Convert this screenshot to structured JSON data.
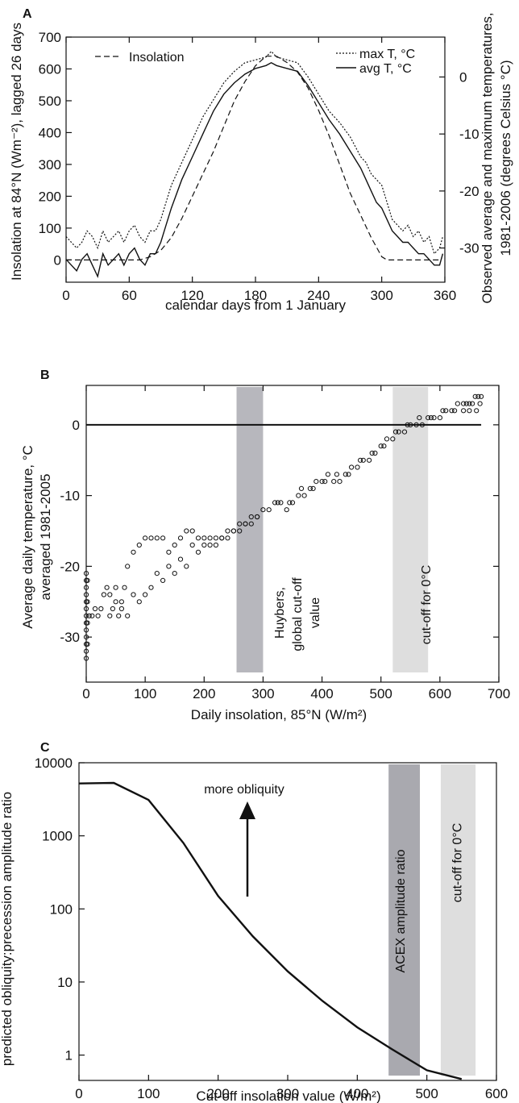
{
  "chart_data": [
    {
      "panel": "A",
      "type": "line",
      "xlabel": "calendar days from 1 January",
      "ylabel": "Insolation at 84°N (Wm⁻²), lagged 26 days",
      "ylabel_right": [
        "Observed average and maximum temperatures,",
        "1981-2006 (degrees Celsius °C)"
      ],
      "xlim": [
        0,
        360
      ],
      "ylim": [
        -70,
        700
      ],
      "ylim_right": [
        -36,
        7
      ],
      "xticks": [
        0,
        60,
        120,
        180,
        240,
        300,
        360
      ],
      "yticks": [
        0,
        100,
        200,
        300,
        400,
        500,
        600,
        700
      ],
      "yticks_right": [
        0,
        -10,
        -20,
        -30
      ],
      "legend": [
        {
          "label": "Insolation",
          "style": "dashed",
          "position": "top-left"
        },
        {
          "label": "max T, °C",
          "style": "dotted",
          "position": "top-right"
        },
        {
          "label": "avg T, °C",
          "style": "solid",
          "position": "top-right"
        }
      ],
      "series": [
        {
          "name": "Insolation",
          "axis": "left",
          "style": "dashed",
          "x": [
            0,
            70,
            80,
            90,
            100,
            110,
            120,
            130,
            140,
            150,
            160,
            170,
            180,
            190,
            200,
            210,
            220,
            230,
            240,
            250,
            260,
            270,
            280,
            290,
            300,
            305,
            320,
            340,
            355
          ],
          "y": [
            0,
            0,
            10,
            30,
            70,
            130,
            200,
            270,
            340,
            420,
            500,
            560,
            610,
            640,
            640,
            620,
            590,
            540,
            470,
            390,
            300,
            210,
            140,
            70,
            10,
            0,
            0,
            0,
            0
          ]
        },
        {
          "name": "max T, °C",
          "axis": "right",
          "style": "dotted",
          "x": [
            0,
            5,
            10,
            15,
            20,
            25,
            30,
            35,
            40,
            45,
            50,
            55,
            60,
            65,
            70,
            75,
            80,
            85,
            90,
            95,
            100,
            110,
            120,
            130,
            140,
            150,
            160,
            170,
            180,
            190,
            195,
            200,
            210,
            220,
            230,
            240,
            250,
            260,
            270,
            280,
            285,
            290,
            295,
            300,
            305,
            310,
            315,
            320,
            325,
            330,
            335,
            340,
            345,
            350,
            355,
            358
          ],
          "y": [
            -28,
            -29,
            -30,
            -29,
            -27,
            -28,
            -30,
            -27,
            -29,
            -28,
            -27,
            -29,
            -27,
            -26,
            -28,
            -29,
            -27,
            -27,
            -25,
            -22,
            -19,
            -15,
            -11,
            -7,
            -4,
            -1,
            1,
            2.5,
            3,
            3.5,
            4.5,
            3.5,
            3,
            2.5,
            0,
            -3,
            -6,
            -8,
            -10.5,
            -14,
            -15,
            -17,
            -18,
            -19,
            -22,
            -25,
            -26,
            -27,
            -26,
            -28,
            -27,
            -29,
            -28,
            -31,
            -30,
            -28
          ]
        },
        {
          "name": "avg T, °C",
          "axis": "right",
          "style": "solid",
          "x": [
            0,
            5,
            10,
            15,
            20,
            25,
            30,
            35,
            40,
            45,
            50,
            55,
            60,
            65,
            70,
            75,
            80,
            85,
            90,
            95,
            100,
            110,
            120,
            130,
            140,
            150,
            160,
            170,
            180,
            190,
            195,
            200,
            210,
            220,
            230,
            240,
            250,
            260,
            270,
            280,
            285,
            290,
            295,
            300,
            305,
            310,
            315,
            320,
            325,
            330,
            335,
            340,
            345,
            350,
            355,
            358
          ],
          "y": [
            -32,
            -33,
            -34,
            -32,
            -31,
            -33,
            -35,
            -31,
            -33,
            -32,
            -31,
            -33,
            -31,
            -30,
            -32,
            -33,
            -31,
            -31,
            -29,
            -26,
            -23,
            -18,
            -14,
            -10,
            -6,
            -3,
            -1,
            0.5,
            1.5,
            2,
            2.5,
            2,
            1.5,
            1,
            -1.5,
            -4.5,
            -7.5,
            -10,
            -13,
            -16,
            -18,
            -20,
            -22,
            -23,
            -25,
            -27,
            -28,
            -29,
            -29,
            -30,
            -31,
            -31,
            -32,
            -33,
            -33,
            -31
          ]
        }
      ]
    },
    {
      "panel": "B",
      "type": "scatter",
      "xlabel": "Daily insolation, 85°N (W/m²)",
      "ylabel": [
        "Average daily temperature, °C",
        "averaged 1981-2005"
      ],
      "xlim": [
        0,
        700
      ],
      "ylim": [
        -35,
        5
      ],
      "xticks": [
        0,
        100,
        200,
        300,
        400,
        500,
        600,
        700
      ],
      "yticks": [
        0,
        -10,
        -20,
        -30
      ],
      "zero_line": {
        "y": 0,
        "x_end": 670
      },
      "bands": [
        {
          "label": [
            "Huybers,",
            "global cut-off",
            "value"
          ],
          "x0": 255,
          "x1": 300,
          "color": "#b7b7bd"
        },
        {
          "label": [
            "cut-off for 0°C"
          ],
          "x0": 520,
          "x1": 580,
          "color": "#dedede"
        }
      ],
      "points": [
        [
          0,
          -21
        ],
        [
          0,
          -22
        ],
        [
          0,
          -23
        ],
        [
          0,
          -24
        ],
        [
          0,
          -25
        ],
        [
          0,
          -26
        ],
        [
          0,
          -27
        ],
        [
          0,
          -28
        ],
        [
          0,
          -29
        ],
        [
          0,
          -30
        ],
        [
          0,
          -31
        ],
        [
          0,
          -32
        ],
        [
          0,
          -33
        ],
        [
          2,
          -22
        ],
        [
          2,
          -25
        ],
        [
          2,
          -28
        ],
        [
          2,
          -31
        ],
        [
          5,
          -27
        ],
        [
          10,
          -27
        ],
        [
          15,
          -26
        ],
        [
          20,
          -27
        ],
        [
          25,
          -26
        ],
        [
          30,
          -24
        ],
        [
          35,
          -23
        ],
        [
          40,
          -24
        ],
        [
          45,
          -26
        ],
        [
          50,
          -23
        ],
        [
          55,
          -27
        ],
        [
          60,
          -26
        ],
        [
          65,
          -23
        ],
        [
          70,
          -20
        ],
        [
          40,
          -27
        ],
        [
          50,
          -25
        ],
        [
          60,
          -25
        ],
        [
          70,
          -27
        ],
        [
          80,
          -24
        ],
        [
          90,
          -25
        ],
        [
          100,
          -24
        ],
        [
          110,
          -23
        ],
        [
          120,
          -21
        ],
        [
          130,
          -22
        ],
        [
          140,
          -20
        ],
        [
          150,
          -21
        ],
        [
          160,
          -19
        ],
        [
          170,
          -20
        ],
        [
          180,
          -17
        ],
        [
          190,
          -18
        ],
        [
          200,
          -17
        ],
        [
          210,
          -17
        ],
        [
          220,
          -16
        ],
        [
          230,
          -16
        ],
        [
          240,
          -15
        ],
        [
          250,
          -15
        ],
        [
          260,
          -14
        ],
        [
          270,
          -14
        ],
        [
          280,
          -13
        ],
        [
          290,
          -13
        ],
        [
          80,
          -18
        ],
        [
          90,
          -17
        ],
        [
          100,
          -16
        ],
        [
          110,
          -16
        ],
        [
          120,
          -16
        ],
        [
          130,
          -16
        ],
        [
          140,
          -18
        ],
        [
          150,
          -17
        ],
        [
          160,
          -16
        ],
        [
          170,
          -15
        ],
        [
          180,
          -15
        ],
        [
          190,
          -16
        ],
        [
          200,
          -16
        ],
        [
          210,
          -16
        ],
        [
          220,
          -17
        ],
        [
          230,
          -16
        ],
        [
          240,
          -16
        ],
        [
          250,
          -15
        ],
        [
          260,
          -15
        ],
        [
          270,
          -14
        ],
        [
          280,
          -14
        ],
        [
          290,
          -13
        ],
        [
          300,
          -12
        ],
        [
          310,
          -12
        ],
        [
          320,
          -11
        ],
        [
          330,
          -11
        ],
        [
          340,
          -12
        ],
        [
          350,
          -11
        ],
        [
          360,
          -10
        ],
        [
          370,
          -10
        ],
        [
          380,
          -9
        ],
        [
          390,
          -8
        ],
        [
          400,
          -8
        ],
        [
          410,
          -7
        ],
        [
          420,
          -8
        ],
        [
          430,
          -8
        ],
        [
          440,
          -7
        ],
        [
          450,
          -6
        ],
        [
          460,
          -6
        ],
        [
          470,
          -5
        ],
        [
          480,
          -5
        ],
        [
          490,
          -4
        ],
        [
          500,
          -3
        ],
        [
          510,
          -2
        ],
        [
          520,
          -2
        ],
        [
          530,
          -1
        ],
        [
          540,
          -1
        ],
        [
          550,
          0
        ],
        [
          560,
          0
        ],
        [
          570,
          0
        ],
        [
          580,
          1
        ],
        [
          590,
          1
        ],
        [
          600,
          1
        ],
        [
          610,
          2
        ],
        [
          620,
          2
        ],
        [
          630,
          3
        ],
        [
          640,
          3
        ],
        [
          650,
          3
        ],
        [
          660,
          4
        ],
        [
          665,
          4
        ],
        [
          325,
          -11
        ],
        [
          345,
          -11
        ],
        [
          365,
          -9
        ],
        [
          385,
          -9
        ],
        [
          405,
          -8
        ],
        [
          425,
          -7
        ],
        [
          445,
          -7
        ],
        [
          465,
          -5
        ],
        [
          485,
          -4
        ],
        [
          505,
          -3
        ],
        [
          525,
          -1
        ],
        [
          545,
          0
        ],
        [
          565,
          1
        ],
        [
          585,
          1
        ],
        [
          605,
          2
        ],
        [
          625,
          2
        ],
        [
          645,
          3
        ],
        [
          655,
          3
        ],
        [
          670,
          4
        ],
        [
          668,
          3
        ],
        [
          662,
          2
        ],
        [
          650,
          2
        ],
        [
          640,
          2
        ]
      ]
    },
    {
      "panel": "C",
      "type": "line",
      "xlabel": "Cut-off insolation value (W/m²)",
      "ylabel": "predicted obliquity:precession amplitude ratio",
      "xlim": [
        0,
        600
      ],
      "ylim": [
        0.45,
        10000
      ],
      "yscale": "log",
      "xticks": [
        0,
        100,
        200,
        300,
        400,
        500,
        600
      ],
      "yticks": [
        1,
        10,
        100,
        1000,
        10000
      ],
      "annotation": {
        "text": "more obliquity",
        "arrow": "up"
      },
      "bands": [
        {
          "label": [
            "ACEX amplitude ratio"
          ],
          "x0": 445,
          "x1": 490,
          "color": "#a9a9af"
        },
        {
          "label": [
            "cut-off for 0°C"
          ],
          "x0": 520,
          "x1": 570,
          "color": "#dedede"
        }
      ],
      "series": [
        {
          "x": [
            0,
            50,
            100,
            150,
            200,
            250,
            300,
            350,
            400,
            450,
            500,
            550
          ],
          "y": [
            5200,
            5300,
            3100,
            800,
            150,
            42,
            14,
            5.5,
            2.4,
            1.2,
            0.62,
            0.47
          ]
        }
      ]
    }
  ]
}
